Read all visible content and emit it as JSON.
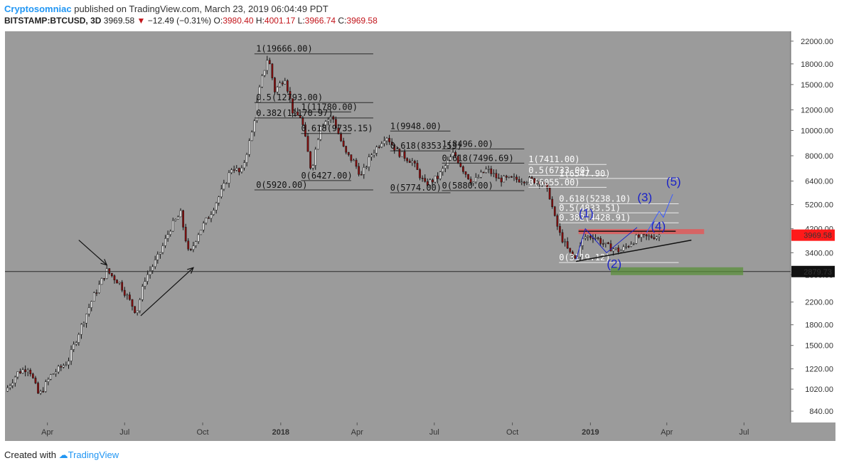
{
  "header": {
    "author": "Cryptosomniac",
    "published_text": "published on TradingView.com, March 23, 2019 06:04:49 PDT",
    "symbol": "BITSTAMP:BTCUSD, 3D",
    "last": "3969.58",
    "change": "−12.49 (−0.31%)",
    "open_label": "O:",
    "open": "3980.40",
    "high_label": "H:",
    "high": "4001.17",
    "low_label": "L:",
    "low": "3966.74",
    "close_label": "C:",
    "close": "3969.58"
  },
  "footer": {
    "created_with": "Created with",
    "brand": "TradingView"
  },
  "colors": {
    "background": "#9b9b9b",
    "up": "#f2f2f2",
    "down": "#8b0e0e",
    "wick": "#111111",
    "last_price": "#ff1a1a",
    "horizontal_line": "#2a2a2a",
    "wave": "#1a22c8"
  },
  "chart_data": {
    "type": "candlestick",
    "scale": "log",
    "y_ticks": [
      840,
      1020,
      1220,
      1500,
      1800,
      2200,
      2800,
      3400,
      4200,
      5200,
      6400,
      8000,
      10000,
      12000,
      15000,
      18000,
      22000
    ],
    "y_tick_labels": [
      "840.00",
      "1020.00",
      "1220.00",
      "1500.00",
      "1800.00",
      "2200.00",
      "2800.00",
      "3400.00",
      "4200.00",
      "5200.00",
      "6400.00",
      "8000.00",
      "10000.00",
      "12000.00",
      "15000.00",
      "18000.00",
      "22000.00"
    ],
    "x_ticks": [
      {
        "label": "Apr",
        "date": "2017-04-01",
        "bold": false
      },
      {
        "label": "Jul",
        "date": "2017-07-01",
        "bold": false
      },
      {
        "label": "Oct",
        "date": "2017-10-01",
        "bold": false
      },
      {
        "label": "2018",
        "date": "2018-01-01",
        "bold": true
      },
      {
        "label": "Apr",
        "date": "2018-04-01",
        "bold": false
      },
      {
        "label": "Jul",
        "date": "2018-07-01",
        "bold": false
      },
      {
        "label": "Oct",
        "date": "2018-10-01",
        "bold": false
      },
      {
        "label": "2019",
        "date": "2019-01-01",
        "bold": true
      },
      {
        "label": "Apr",
        "date": "2019-04-01",
        "bold": false
      },
      {
        "label": "Jul",
        "date": "2019-07-01",
        "bold": false
      }
    ],
    "x_range": [
      "2017-02-10",
      "2019-08-25"
    ],
    "y_range": [
      760,
      24000
    ],
    "price_path": [
      [
        "2017-02-10",
        1000
      ],
      [
        "2017-02-25",
        1180
      ],
      [
        "2017-03-10",
        1240
      ],
      [
        "2017-03-22",
        960
      ],
      [
        "2017-04-05",
        1150
      ],
      [
        "2017-04-25",
        1300
      ],
      [
        "2017-05-10",
        1750
      ],
      [
        "2017-05-25",
        2300
      ],
      [
        "2017-06-10",
        2900
      ],
      [
        "2017-06-25",
        2600
      ],
      [
        "2017-07-15",
        2000
      ],
      [
        "2017-07-25",
        2700
      ],
      [
        "2017-08-10",
        3300
      ],
      [
        "2017-08-25",
        4300
      ],
      [
        "2017-09-05",
        4800
      ],
      [
        "2017-09-15",
        3300
      ],
      [
        "2017-09-25",
        4000
      ],
      [
        "2017-10-10",
        4800
      ],
      [
        "2017-10-25",
        6000
      ],
      [
        "2017-11-05",
        7300
      ],
      [
        "2017-11-15",
        6800
      ],
      [
        "2017-11-28",
        9800
      ],
      [
        "2017-12-08",
        15000
      ],
      [
        "2017-12-17",
        19300
      ],
      [
        "2017-12-25",
        14200
      ],
      [
        "2018-01-06",
        16000
      ],
      [
        "2018-01-16",
        11500
      ],
      [
        "2018-01-25",
        11300
      ],
      [
        "2018-02-06",
        7000
      ],
      [
        "2018-02-17",
        10600
      ],
      [
        "2018-03-03",
        11300
      ],
      [
        "2018-03-18",
        8200
      ],
      [
        "2018-03-28",
        7600
      ],
      [
        "2018-04-06",
        6700
      ],
      [
        "2018-04-18",
        8100
      ],
      [
        "2018-05-05",
        9600
      ],
      [
        "2018-05-18",
        8300
      ],
      [
        "2018-06-05",
        7600
      ],
      [
        "2018-06-20",
        6200
      ],
      [
        "2018-07-05",
        6600
      ],
      [
        "2018-07-24",
        8200
      ],
      [
        "2018-08-05",
        7000
      ],
      [
        "2018-08-15",
        6300
      ],
      [
        "2018-09-01",
        7100
      ],
      [
        "2018-09-15",
        6500
      ],
      [
        "2018-10-10",
        6500
      ],
      [
        "2018-11-05",
        6400
      ],
      [
        "2018-11-14",
        5600
      ],
      [
        "2018-11-20",
        4600
      ],
      [
        "2018-11-26",
        4000
      ],
      [
        "2018-12-07",
        3400
      ],
      [
        "2018-12-15",
        3200
      ],
      [
        "2018-12-24",
        3900
      ],
      [
        "2019-01-05",
        3950
      ],
      [
        "2019-01-20",
        3600
      ],
      [
        "2019-02-05",
        3450
      ],
      [
        "2019-02-15",
        3650
      ],
      [
        "2019-02-25",
        3900
      ],
      [
        "2019-03-10",
        3900
      ],
      [
        "2019-03-23",
        3970
      ]
    ],
    "horizontal_line": 2879.73,
    "last_price": 3969.58,
    "price_labels": [
      "3969.58",
      "2879.73"
    ],
    "fib_sets": [
      {
        "x_start": "2017-12-01",
        "x_end": "2018-04-20",
        "label_x": "2017-12-03",
        "color": "#111111",
        "levels": [
          {
            "text": "1(19666.00)",
            "price": 19666
          },
          {
            "text": "0.5(12793.00)",
            "price": 12793
          },
          {
            "text": "0.382(11170.97)",
            "price": 11170.97
          },
          {
            "text": "0(5920.00)",
            "price": 5920
          }
        ]
      },
      {
        "x_start": "2018-01-25",
        "x_end": "2018-03-25",
        "label_x": "2018-01-25",
        "color": "#111111",
        "levels": [
          {
            "text": "1(11780.00)",
            "price": 11780
          },
          {
            "text": "0.618(9735.15)",
            "price": 9735.15
          },
          {
            "text": "0(6427.00)",
            "price": 6427
          }
        ]
      },
      {
        "x_start": "2018-05-10",
        "x_end": "2018-07-20",
        "label_x": "2018-05-10",
        "color": "#111111",
        "levels": [
          {
            "text": "1(9948.00)",
            "price": 9948
          },
          {
            "text": "0.618(8353.53)",
            "price": 8353.53
          },
          {
            "text": "0(5774.00)",
            "price": 5774
          }
        ]
      },
      {
        "x_start": "2018-07-10",
        "x_end": "2018-10-15",
        "label_x": "2018-07-10",
        "color": "#111111",
        "levels": [
          {
            "text": "1(8496.00)",
            "price": 8496
          },
          {
            "text": "0.618(7496.69)",
            "price": 7496.69
          },
          {
            "text": "0(5880.00)",
            "price": 5880
          }
        ]
      },
      {
        "x_start": "2018-10-20",
        "x_end": "2019-01-20",
        "label_x": "2018-10-20",
        "color": "#ffffff",
        "levels": [
          {
            "text": "1(7411.00)",
            "price": 7411
          },
          {
            "text": "0.5(6733.00)",
            "price": 6733
          },
          {
            "text": "0(6055.00)",
            "price": 6055
          }
        ]
      },
      {
        "x_start": "2018-11-25",
        "x_end": "2019-04-15",
        "label_x": "2018-11-25",
        "color": "#ffffff",
        "levels": [
          {
            "text": "1(6547.90)",
            "price": 6547.9
          },
          {
            "text": "0.618(5238.10)",
            "price": 5238.1
          },
          {
            "text": "0.5(4833.51)",
            "price": 4833.51
          },
          {
            "text": "0.382(4428.91)",
            "price": 4428.91
          },
          {
            "text": "0(3119.12)",
            "price": 3119.12
          }
        ]
      }
    ],
    "wave_labels": [
      {
        "text": "(1)",
        "date": "2018-12-27",
        "price": 4650
      },
      {
        "text": "(2)",
        "date": "2019-01-29",
        "price": 2980
      },
      {
        "text": "(3)",
        "date": "2019-03-06",
        "price": 5350
      },
      {
        "text": "(4)",
        "date": "2019-03-22",
        "price": 4150
      },
      {
        "text": "(5)",
        "date": "2019-04-09",
        "price": 6150
      }
    ],
    "wave_projection": [
      [
        "2019-03-08",
        4050
      ],
      [
        "2019-03-23",
        4900
      ],
      [
        "2019-03-28",
        4650
      ],
      [
        "2019-04-08",
        5700
      ]
    ],
    "wave_count": [
      [
        "2018-12-15",
        3200
      ],
      [
        "2018-12-26",
        4200
      ],
      [
        "2019-01-20",
        3400
      ],
      [
        "2019-02-25",
        4250
      ]
    ],
    "trendline": [
      [
        "2018-12-15",
        3150
      ],
      [
        "2019-04-30",
        3800
      ]
    ],
    "resistance": {
      "price": 4110,
      "x_start": "2018-12-18",
      "x_end": "2019-05-15"
    },
    "support_zone": {
      "from": 2790,
      "to": 2990,
      "x_start": "2019-01-25",
      "x_end": "2019-06-30"
    },
    "arrows": [
      {
        "from": [
          "2017-05-08",
          3800
        ],
        "to": [
          "2017-06-10",
          3050
        ]
      },
      {
        "from": [
          "2017-07-20",
          1950
        ],
        "to": [
          "2017-09-20",
          2980
        ]
      }
    ]
  }
}
